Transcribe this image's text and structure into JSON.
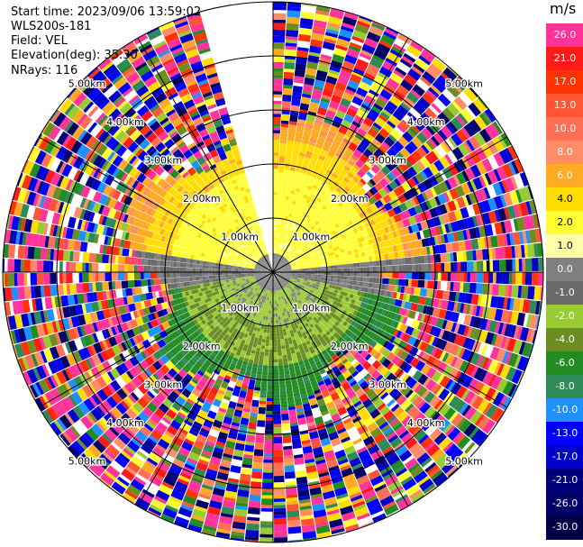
{
  "header": {
    "start_time": "Start time: 2023/09/06 13:59:02",
    "instrument": "WLS200s-181",
    "field": "Field: VEL",
    "elevation": "Elevation(deg): 35.30",
    "nrays": "NRays: 116"
  },
  "range_labels": {
    "r1": "1.00km",
    "r2": "2.00km",
    "r3": "3.00km",
    "r4": "4.00km",
    "r5": "5.00km"
  },
  "colorbar": {
    "unit": "m/s",
    "ticks": [
      "26.0",
      "21.0",
      "17.0",
      "13.0",
      "10.0",
      "8.0",
      "6.0",
      "4.0",
      "2.0",
      "1.0",
      "0.0",
      "-1.0",
      "-2.0",
      "-4.0",
      "-6.0",
      "-8.0",
      "-10.0",
      "-13.0",
      "-17.0",
      "-21.0",
      "-26.0",
      "-30.0"
    ],
    "colors": [
      "#ff3399",
      "#ff1a1a",
      "#ff3300",
      "#ff5533",
      "#ff6f55",
      "#ff8c66",
      "#ffaa22",
      "#ffdd00",
      "#ffff33",
      "#ffffaa",
      "#7f7f7f",
      "#6a6a6a",
      "#99cc33",
      "#6b8e23",
      "#228b22",
      "#2e8b57",
      "#1e90ff",
      "#0000ff",
      "#0000cc",
      "#00007a",
      "#000066",
      "#000044"
    ]
  }
}
